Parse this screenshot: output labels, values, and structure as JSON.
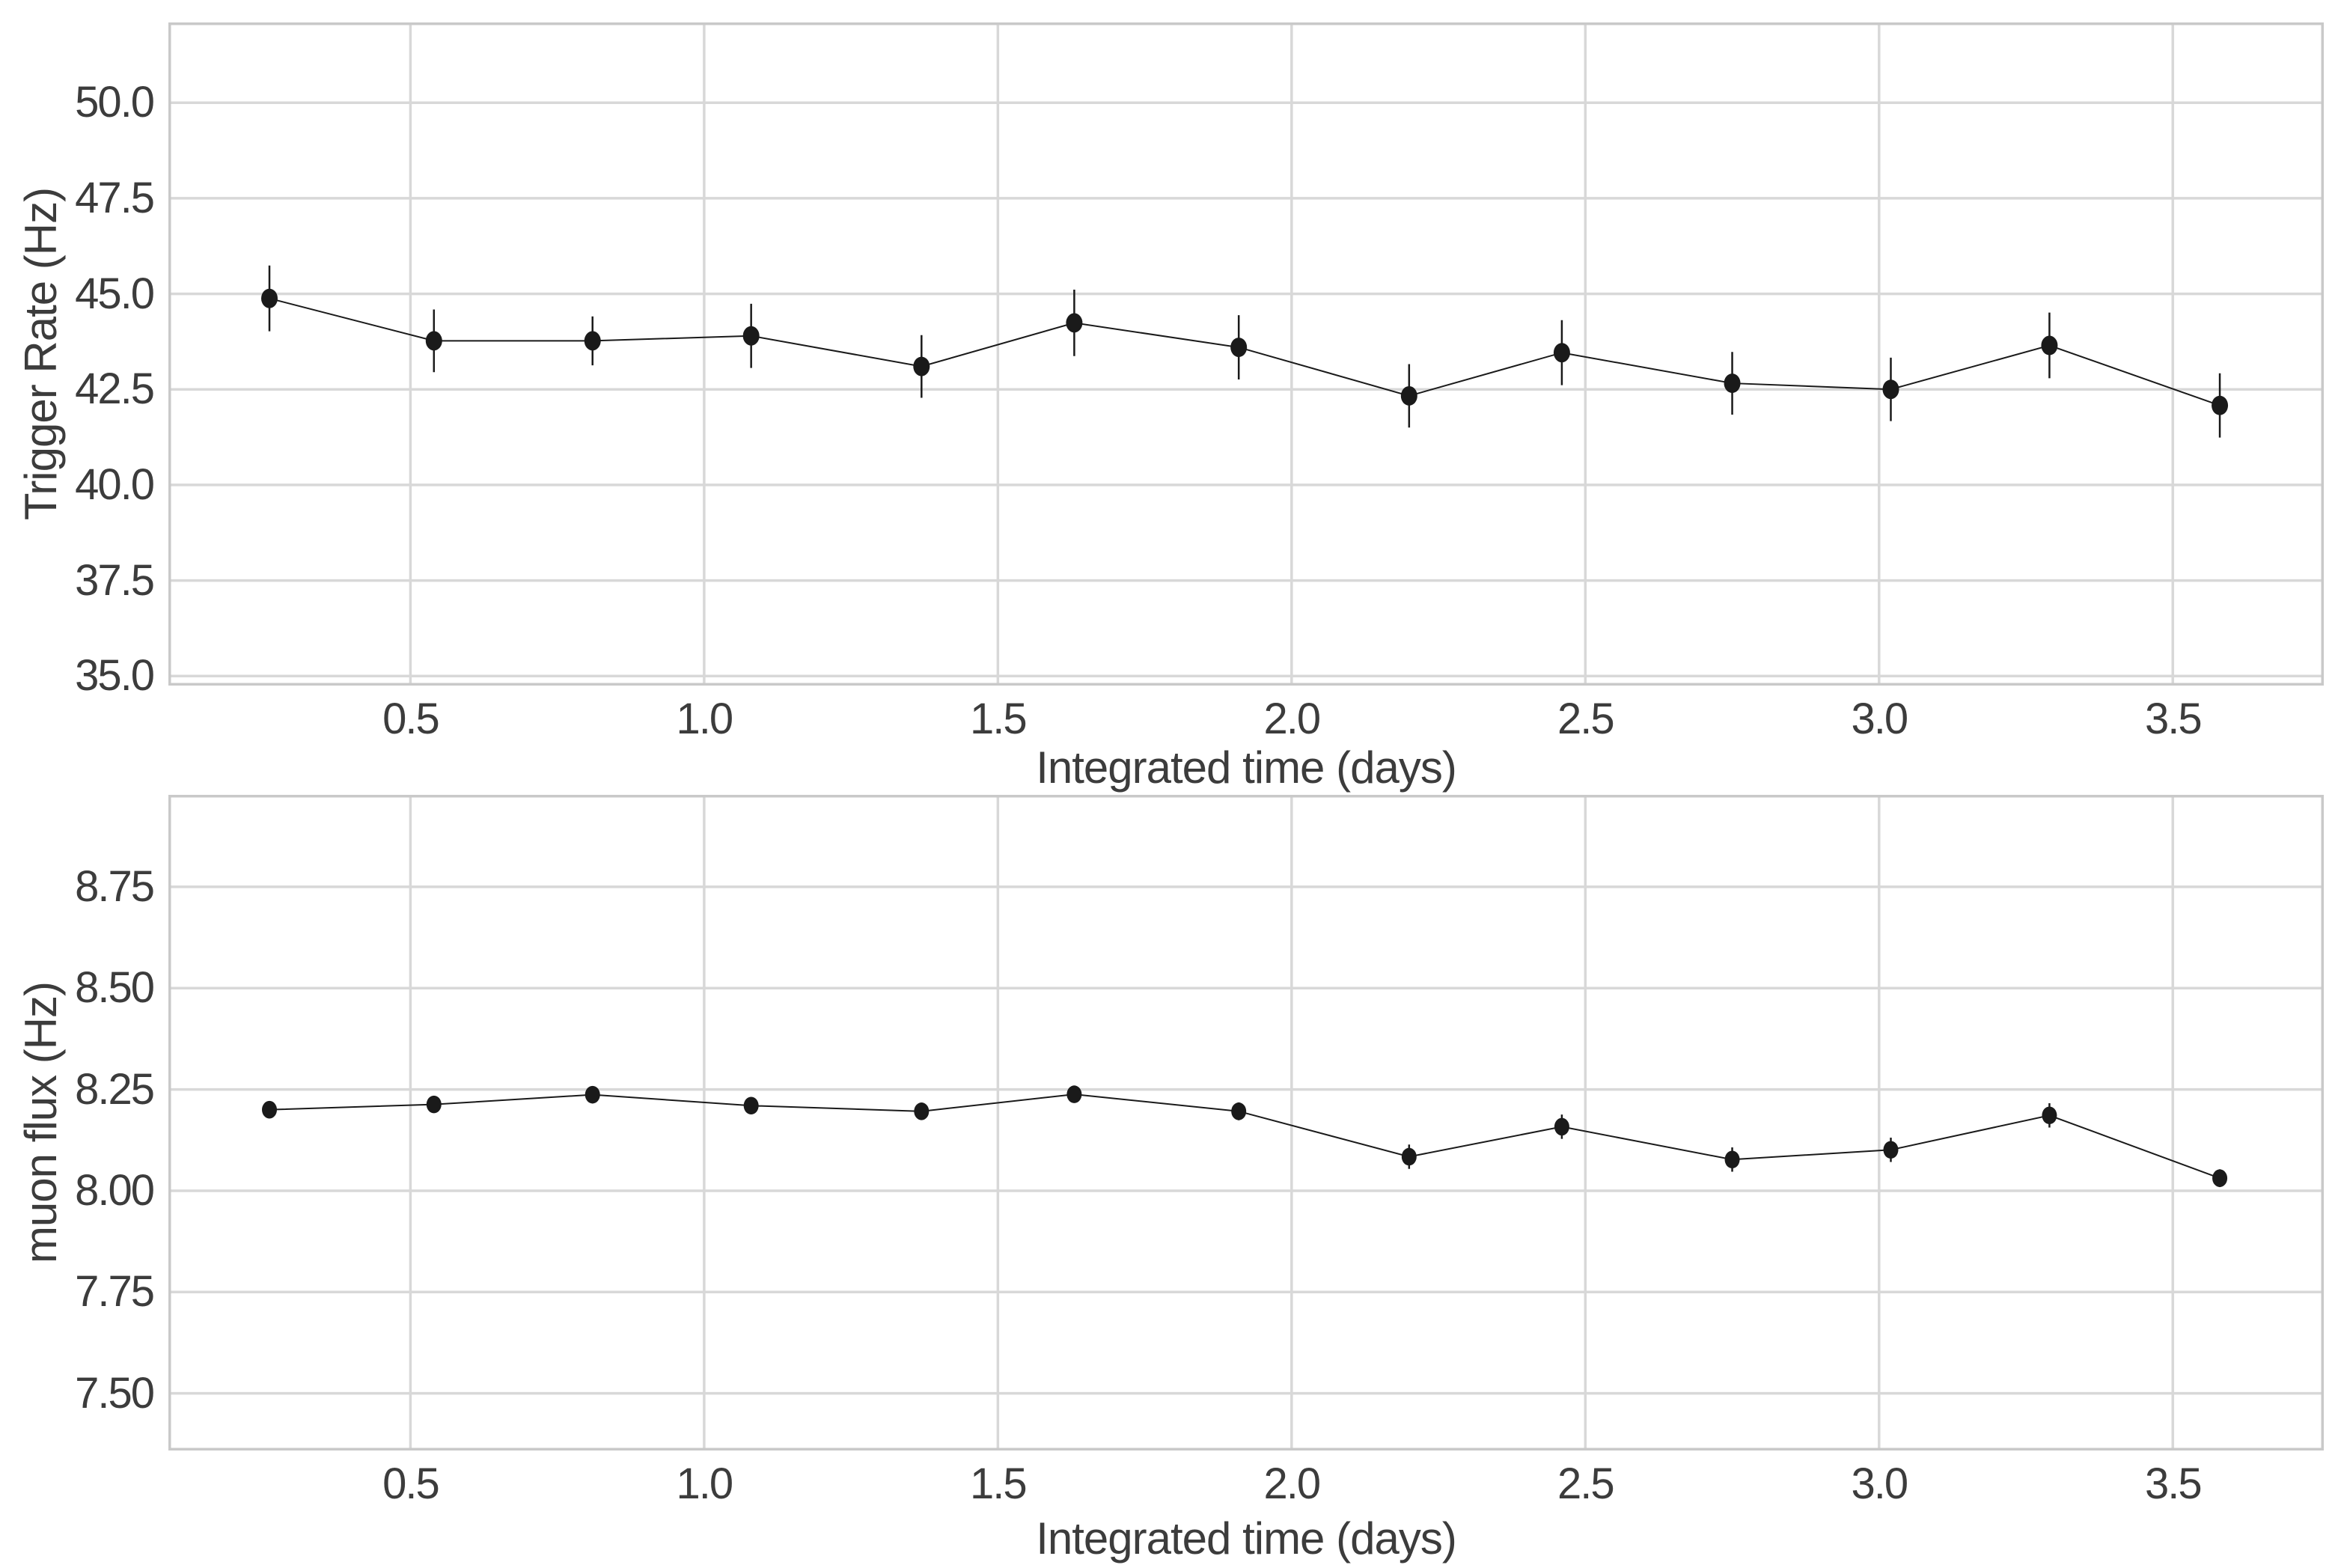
{
  "figure": {
    "background_color": "#ffffff",
    "grid_color": "#d8d8d8",
    "spine_color": "#c9c9c9",
    "text_color": "#3c3c3c",
    "data_color": "#1a1a1a"
  },
  "chart_data": [
    {
      "type": "line",
      "title": "",
      "xlabel": "Integrated time (days)",
      "ylabel": "Trigger Rate (Hz)",
      "grid": true,
      "legend": null,
      "xlim": [
        0.088,
        3.757
      ],
      "ylim": [
        34.75,
        52.1
      ],
      "xticks": {
        "values": [
          0.5,
          1.0,
          1.5,
          2.0,
          2.5,
          3.0,
          3.5
        ],
        "labels": [
          "0.5",
          "1.0",
          "1.5",
          "2.0",
          "2.5",
          "3.0",
          "3.5"
        ]
      },
      "yticks": {
        "values": [
          35.0,
          37.5,
          40.0,
          42.5,
          45.0,
          47.5,
          50.0
        ],
        "labels": [
          "35.0",
          "37.5",
          "40.0",
          "42.5",
          "45.0",
          "47.5",
          "50.0"
        ]
      },
      "series": [
        {
          "name": "Trigger Rate",
          "marker": "circle",
          "marker_size": 11,
          "line_width": 2,
          "color": "#1a1a1a",
          "error_bars": true,
          "x": [
            0.26,
            0.54,
            0.81,
            1.08,
            1.37,
            1.63,
            1.91,
            2.2,
            2.46,
            2.75,
            3.02,
            3.29,
            3.58
          ],
          "y": [
            44.88,
            43.77,
            43.77,
            43.9,
            43.1,
            44.24,
            43.6,
            42.33,
            43.46,
            42.66,
            42.5,
            43.65,
            42.08
          ],
          "yerr": [
            0.86,
            0.82,
            0.64,
            0.84,
            0.82,
            0.87,
            0.84,
            0.83,
            0.85,
            0.82,
            0.83,
            0.86,
            0.84
          ]
        }
      ]
    },
    {
      "type": "line",
      "title": "",
      "xlabel": "Integrated time (days)",
      "ylabel": "muon flux (Hz)",
      "grid": true,
      "legend": null,
      "xlim": [
        0.088,
        3.757
      ],
      "ylim": [
        7.359,
        8.977
      ],
      "xticks": {
        "values": [
          0.5,
          1.0,
          1.5,
          2.0,
          2.5,
          3.0,
          3.5
        ],
        "labels": [
          "0.5",
          "1.0",
          "1.5",
          "2.0",
          "2.5",
          "3.0",
          "3.5"
        ]
      },
      "yticks": {
        "values": [
          7.5,
          7.75,
          8.0,
          8.25,
          8.5,
          8.75
        ],
        "labels": [
          "7.50",
          "7.75",
          "8.00",
          "8.25",
          "8.50",
          "8.75"
        ]
      },
      "series": [
        {
          "name": "muon flux",
          "marker": "circle",
          "marker_size": 10,
          "line_width": 2,
          "color": "#1a1a1a",
          "error_bars": true,
          "x": [
            0.26,
            0.54,
            0.81,
            1.08,
            1.37,
            1.63,
            1.91,
            2.2,
            2.46,
            2.75,
            3.02,
            3.29,
            3.58
          ],
          "y": [
            8.2,
            8.213,
            8.237,
            8.21,
            8.196,
            8.238,
            8.196,
            8.084,
            8.158,
            8.077,
            8.101,
            8.186,
            8.031
          ],
          "yerr": [
            0.02,
            0.02,
            0.02,
            0.02,
            0.02,
            0.02,
            0.022,
            0.03,
            0.03,
            0.03,
            0.03,
            0.03,
            0.022
          ]
        }
      ]
    }
  ]
}
